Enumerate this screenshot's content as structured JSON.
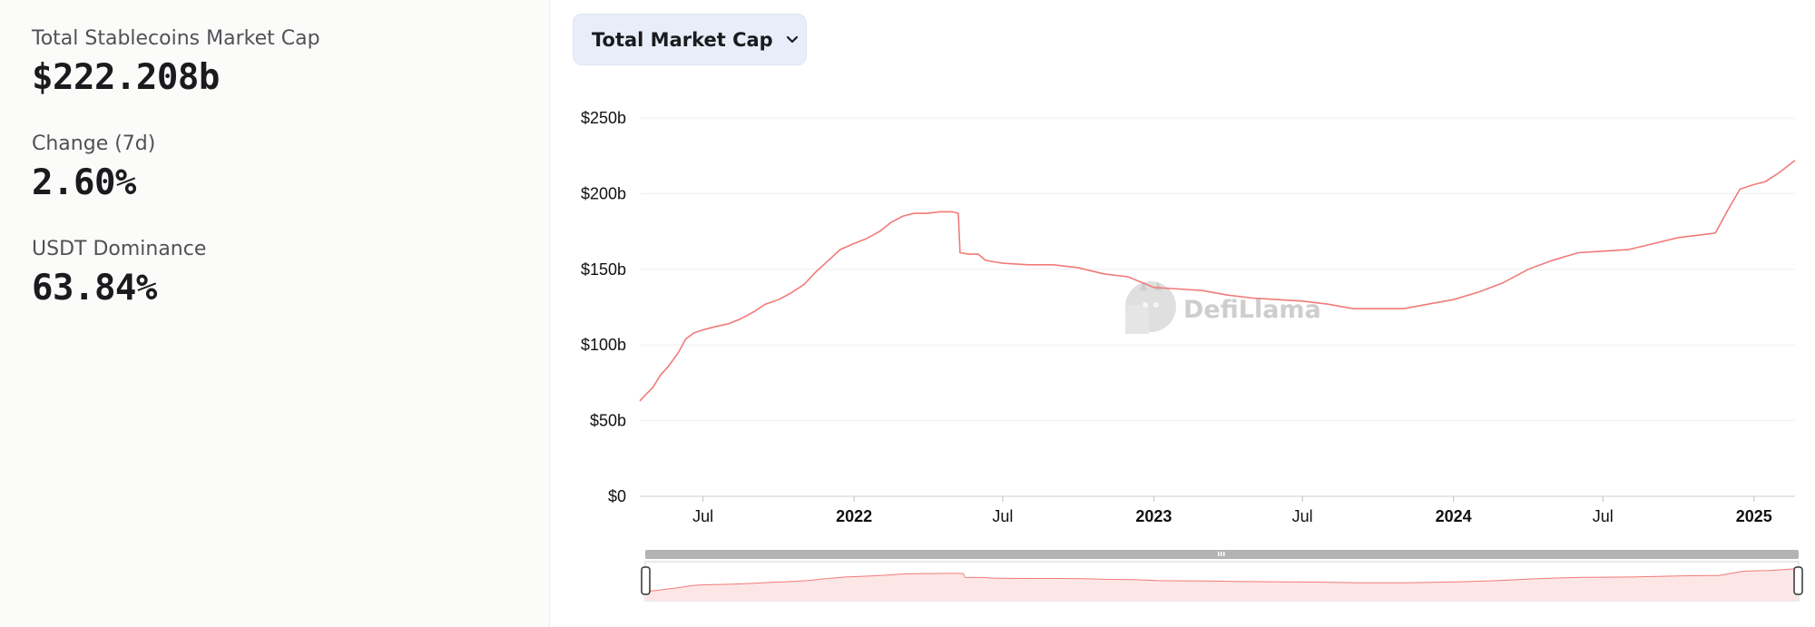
{
  "stats": [
    {
      "label": "Total Stablecoins Market Cap",
      "value": "$222.208b"
    },
    {
      "label": "Change (7d)",
      "value": "2.60%"
    },
    {
      "label": "USDT Dominance",
      "value": "63.84%"
    }
  ],
  "metric_selector": {
    "label": "Total Market Cap",
    "icon": "chevron-down-icon"
  },
  "watermark": {
    "text": "DefiLlama",
    "icon": "defillama-logo-icon"
  },
  "colors": {
    "line": "#f07b78",
    "area": "#fde6e6",
    "grid": "#efefef",
    "slider": "#b3b3b3"
  },
  "chart_data": {
    "type": "line",
    "x_axis": "date",
    "y_ticks": [
      "$0",
      "$50b",
      "$100b",
      "$150b",
      "$200b",
      "$250b"
    ],
    "x_ticks": [
      {
        "label": "Jul",
        "date": "2021-07-01",
        "bold": false
      },
      {
        "label": "2022",
        "date": "2022-01-01",
        "bold": true
      },
      {
        "label": "Jul",
        "date": "2022-07-01",
        "bold": false
      },
      {
        "label": "2023",
        "date": "2023-01-01",
        "bold": true
      },
      {
        "label": "Jul",
        "date": "2023-07-01",
        "bold": false
      },
      {
        "label": "2024",
        "date": "2024-01-01",
        "bold": true
      },
      {
        "label": "Jul",
        "date": "2024-07-01",
        "bold": false
      },
      {
        "label": "2025",
        "date": "2025-01-01",
        "bold": true
      }
    ],
    "xlim": [
      "2021-04-15",
      "2025-02-20"
    ],
    "ylim": [
      0,
      250
    ],
    "grid": true,
    "series": [
      {
        "unit": "$b",
        "points": [
          [
            "2021-04-15",
            63
          ],
          [
            "2021-04-22",
            67
          ],
          [
            "2021-05-01",
            72
          ],
          [
            "2021-05-10",
            80
          ],
          [
            "2021-05-20",
            86
          ],
          [
            "2021-06-01",
            95
          ],
          [
            "2021-06-10",
            104
          ],
          [
            "2021-06-20",
            108
          ],
          [
            "2021-07-01",
            110
          ],
          [
            "2021-07-15",
            112
          ],
          [
            "2021-08-01",
            114
          ],
          [
            "2021-08-15",
            117
          ],
          [
            "2021-09-01",
            122
          ],
          [
            "2021-09-15",
            127
          ],
          [
            "2021-10-01",
            130
          ],
          [
            "2021-10-15",
            134
          ],
          [
            "2021-11-01",
            140
          ],
          [
            "2021-11-15",
            148
          ],
          [
            "2021-12-01",
            156
          ],
          [
            "2021-12-15",
            163
          ],
          [
            "2022-01-01",
            167
          ],
          [
            "2022-01-15",
            170
          ],
          [
            "2022-02-01",
            175
          ],
          [
            "2022-02-15",
            181
          ],
          [
            "2022-03-01",
            185
          ],
          [
            "2022-03-15",
            187
          ],
          [
            "2022-04-01",
            187
          ],
          [
            "2022-04-15",
            188
          ],
          [
            "2022-05-01",
            188
          ],
          [
            "2022-05-08",
            187
          ],
          [
            "2022-05-10",
            161
          ],
          [
            "2022-05-20",
            160
          ],
          [
            "2022-06-01",
            160
          ],
          [
            "2022-06-10",
            156
          ],
          [
            "2022-06-20",
            155
          ],
          [
            "2022-07-01",
            154
          ],
          [
            "2022-08-01",
            153
          ],
          [
            "2022-09-01",
            153
          ],
          [
            "2022-10-01",
            151
          ],
          [
            "2022-11-01",
            147
          ],
          [
            "2022-12-01",
            145
          ],
          [
            "2023-01-01",
            138
          ],
          [
            "2023-02-01",
            137
          ],
          [
            "2023-03-01",
            136
          ],
          [
            "2023-04-01",
            133
          ],
          [
            "2023-05-01",
            131
          ],
          [
            "2023-06-01",
            130
          ],
          [
            "2023-07-01",
            129
          ],
          [
            "2023-08-01",
            127
          ],
          [
            "2023-09-01",
            124
          ],
          [
            "2023-10-01",
            124
          ],
          [
            "2023-11-01",
            124
          ],
          [
            "2023-12-01",
            127
          ],
          [
            "2024-01-01",
            130
          ],
          [
            "2024-02-01",
            135
          ],
          [
            "2024-03-01",
            141
          ],
          [
            "2024-04-01",
            150
          ],
          [
            "2024-05-01",
            156
          ],
          [
            "2024-06-01",
            161
          ],
          [
            "2024-07-01",
            162
          ],
          [
            "2024-08-01",
            163
          ],
          [
            "2024-09-01",
            167
          ],
          [
            "2024-10-01",
            171
          ],
          [
            "2024-11-01",
            173
          ],
          [
            "2024-11-15",
            174
          ],
          [
            "2024-12-01",
            190
          ],
          [
            "2024-12-15",
            203
          ],
          [
            "2025-01-01",
            206
          ],
          [
            "2025-01-15",
            208
          ],
          [
            "2025-02-01",
            214
          ],
          [
            "2025-02-20",
            222
          ]
        ]
      }
    ]
  }
}
